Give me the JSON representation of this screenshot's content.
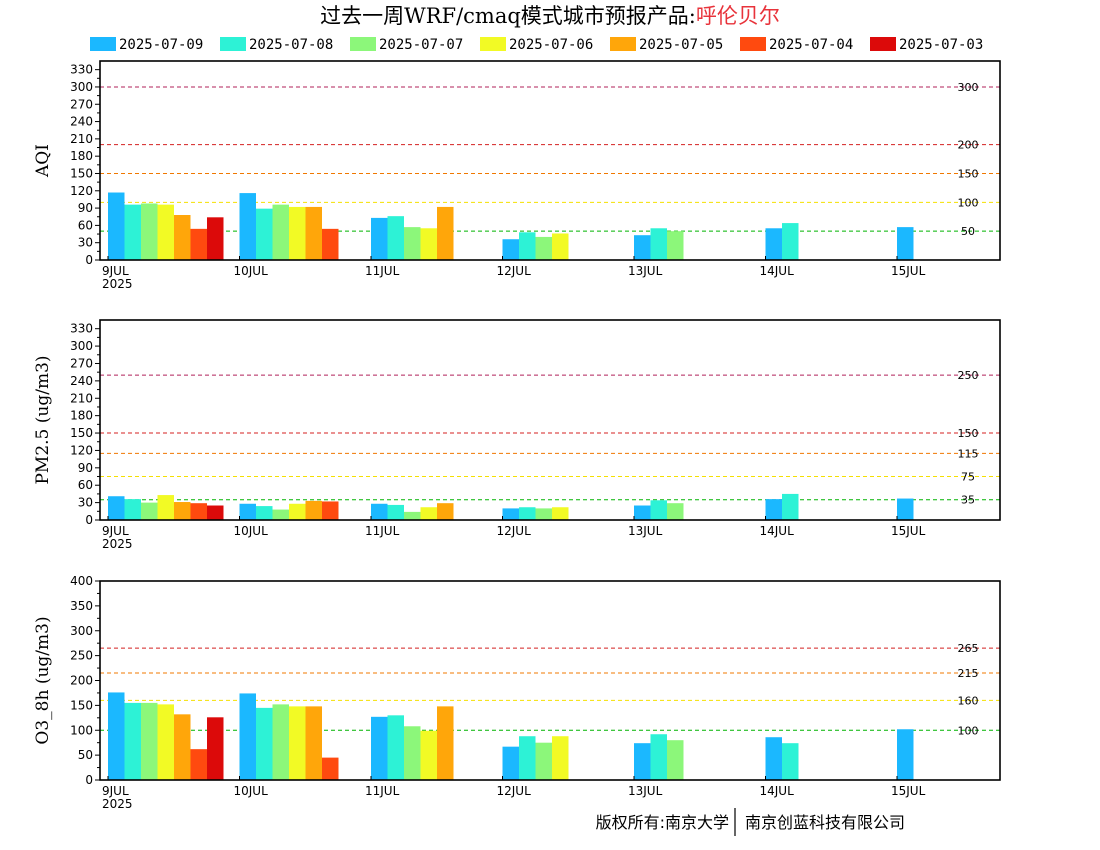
{
  "title": {
    "prefix": "过去一周WRF/cmaq模式城市预报产品:",
    "city": "呼伦贝尔",
    "city_color": "#e8333b"
  },
  "legend": [
    {
      "label": "2025-07-09",
      "color": "#1bb8ff"
    },
    {
      "label": "2025-07-08",
      "color": "#2df2d6"
    },
    {
      "label": "2025-07-07",
      "color": "#8cf77a"
    },
    {
      "label": "2025-07-06",
      "color": "#f2fa25"
    },
    {
      "label": "2025-07-05",
      "color": "#ffa60a"
    },
    {
      "label": "2025-07-04",
      "color": "#ff4a0f"
    },
    {
      "label": "2025-07-03",
      "color": "#dc0a0a"
    }
  ],
  "footer": {
    "left": "版权所有:南京大学",
    "right": "南京创蓝科技有限公司"
  },
  "chart_data": [
    {
      "type": "bar",
      "ylabel": "AQI",
      "ylim": [
        0,
        345
      ],
      "yticks": [
        0,
        30,
        60,
        90,
        120,
        150,
        180,
        210,
        240,
        270,
        300,
        330
      ],
      "categories": [
        "9JUL",
        "10JUL",
        "11JUL",
        "12JUL",
        "13JUL",
        "14JUL",
        "15JUL"
      ],
      "first_category_year": "2025",
      "thresholds": [
        {
          "value": 300,
          "label": "300",
          "color": "#b0205a"
        },
        {
          "value": 200,
          "label": "200",
          "color": "#d42020"
        },
        {
          "value": 150,
          "label": "150",
          "color": "#f07800"
        },
        {
          "value": 100,
          "label": "100",
          "color": "#f5e000"
        },
        {
          "value": 50,
          "label": "50",
          "color": "#00b400"
        }
      ],
      "series": [
        {
          "name": "2025-07-09",
          "values": [
            117,
            116,
            73,
            36,
            43,
            55,
            57
          ]
        },
        {
          "name": "2025-07-08",
          "values": [
            96,
            89,
            76,
            48,
            55,
            64,
            null
          ]
        },
        {
          "name": "2025-07-07",
          "values": [
            98,
            96,
            57,
            40,
            50,
            null,
            null
          ]
        },
        {
          "name": "2025-07-06",
          "values": [
            96,
            92,
            55,
            46,
            null,
            null,
            null
          ]
        },
        {
          "name": "2025-07-05",
          "values": [
            78,
            92,
            92,
            null,
            null,
            null,
            null
          ]
        },
        {
          "name": "2025-07-04",
          "values": [
            54,
            54,
            null,
            null,
            null,
            null,
            null
          ]
        },
        {
          "name": "2025-07-03",
          "values": [
            74,
            null,
            null,
            null,
            null,
            null,
            null
          ]
        }
      ]
    },
    {
      "type": "bar",
      "ylabel": "PM2.5 (ug/m3)",
      "ylim": [
        0,
        345
      ],
      "yticks": [
        0,
        30,
        60,
        90,
        120,
        150,
        180,
        210,
        240,
        270,
        300,
        330
      ],
      "categories": [
        "9JUL",
        "10JUL",
        "11JUL",
        "12JUL",
        "13JUL",
        "14JUL",
        "15JUL"
      ],
      "first_category_year": "2025",
      "thresholds": [
        {
          "value": 250,
          "label": "250",
          "color": "#b0205a"
        },
        {
          "value": 150,
          "label": "150",
          "color": "#d42020"
        },
        {
          "value": 115,
          "label": "115",
          "color": "#f07800"
        },
        {
          "value": 75,
          "label": "75",
          "color": "#f5e000"
        },
        {
          "value": 35,
          "label": "35",
          "color": "#00b400"
        }
      ],
      "series": [
        {
          "name": "2025-07-09",
          "values": [
            41,
            28,
            28,
            20,
            25,
            36,
            37
          ]
        },
        {
          "name": "2025-07-08",
          "values": [
            36,
            24,
            26,
            22,
            34,
            45,
            null
          ]
        },
        {
          "name": "2025-07-07",
          "values": [
            30,
            18,
            14,
            20,
            29,
            null,
            null
          ]
        },
        {
          "name": "2025-07-06",
          "values": [
            43,
            28,
            22,
            22,
            null,
            null,
            null
          ]
        },
        {
          "name": "2025-07-05",
          "values": [
            31,
            33,
            29,
            null,
            null,
            null,
            null
          ]
        },
        {
          "name": "2025-07-04",
          "values": [
            29,
            32,
            null,
            null,
            null,
            null,
            null
          ]
        },
        {
          "name": "2025-07-03",
          "values": [
            25,
            null,
            null,
            null,
            null,
            null,
            null
          ]
        }
      ]
    },
    {
      "type": "bar",
      "ylabel": "O3_8h (ug/m3)",
      "ylim": [
        0,
        400
      ],
      "yticks": [
        0,
        50,
        100,
        150,
        200,
        250,
        300,
        350,
        400
      ],
      "categories": [
        "9JUL",
        "10JUL",
        "11JUL",
        "12JUL",
        "13JUL",
        "14JUL",
        "15JUL"
      ],
      "first_category_year": "2025",
      "thresholds": [
        {
          "value": 265,
          "label": "265",
          "color": "#d42020"
        },
        {
          "value": 215,
          "label": "215",
          "color": "#f07800"
        },
        {
          "value": 160,
          "label": "160",
          "color": "#f5e000"
        },
        {
          "value": 100,
          "label": "100",
          "color": "#00b400"
        }
      ],
      "series": [
        {
          "name": "2025-07-09",
          "values": [
            176,
            174,
            127,
            67,
            74,
            86,
            102
          ]
        },
        {
          "name": "2025-07-08",
          "values": [
            155,
            145,
            130,
            88,
            92,
            74,
            null
          ]
        },
        {
          "name": "2025-07-07",
          "values": [
            155,
            152,
            108,
            75,
            80,
            null,
            null
          ]
        },
        {
          "name": "2025-07-06",
          "values": [
            152,
            148,
            99,
            88,
            null,
            null,
            null
          ]
        },
        {
          "name": "2025-07-05",
          "values": [
            132,
            148,
            148,
            null,
            null,
            null,
            null
          ]
        },
        {
          "name": "2025-07-04",
          "values": [
            62,
            45,
            null,
            null,
            null,
            null,
            null
          ]
        },
        {
          "name": "2025-07-03",
          "values": [
            126,
            null,
            null,
            null,
            null,
            null,
            null
          ]
        }
      ]
    }
  ]
}
